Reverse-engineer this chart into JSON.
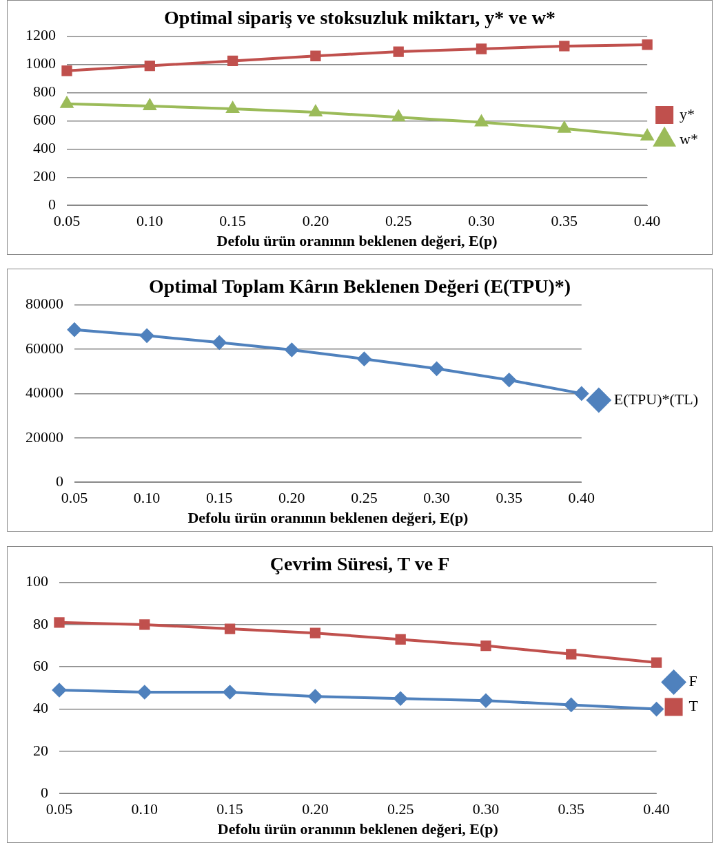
{
  "chart_data": [
    {
      "type": "line",
      "title": "Optimal sipariş ve stoksuzluk miktarı, y* ve w*",
      "xlabel": "Defolu ürün oranının beklenen değeri, E(p)",
      "categories": [
        "0.05",
        "0.10",
        "0.15",
        "0.20",
        "0.25",
        "0.30",
        "0.35",
        "0.40"
      ],
      "series": [
        {
          "name": "y*",
          "color": "#c0504d",
          "marker": "square",
          "values": [
            955,
            990,
            1025,
            1060,
            1090,
            1110,
            1130,
            1140
          ]
        },
        {
          "name": "w*",
          "color": "#9bbb59",
          "marker": "triangle",
          "values": [
            720,
            705,
            685,
            660,
            625,
            590,
            545,
            490
          ]
        }
      ],
      "ylim": [
        0,
        1200
      ],
      "yticks": [
        0,
        200,
        400,
        600,
        800,
        1000,
        1200
      ],
      "grid": "y",
      "legend": "right"
    },
    {
      "type": "line",
      "title": "Optimal Toplam Kârın Beklenen Değeri (E(TPU)*)",
      "xlabel": "Defolu ürün oranının beklenen değeri, E(p)",
      "categories": [
        "0.05",
        "0.10",
        "0.15",
        "0.20",
        "0.25",
        "0.30",
        "0.35",
        "0.40"
      ],
      "series": [
        {
          "name": "E(TPU)*(TL)",
          "color": "#4f81bd",
          "marker": "diamond",
          "values": [
            68800,
            66100,
            63000,
            59700,
            55600,
            51200,
            46100,
            40000
          ]
        }
      ],
      "ylim": [
        0,
        80000
      ],
      "yticks": [
        0,
        20000,
        40000,
        60000,
        80000
      ],
      "grid": "y",
      "legend": "right"
    },
    {
      "type": "line",
      "title": "Çevrim Süresi, T ve F",
      "xlabel": "Defolu ürün oranının beklenen değeri, E(p)",
      "categories": [
        "0.05",
        "0.10",
        "0.15",
        "0.20",
        "0.25",
        "0.30",
        "0.35",
        "0.40"
      ],
      "series": [
        {
          "name": "F",
          "color": "#4f81bd",
          "marker": "diamond",
          "values": [
            49,
            48,
            48,
            46,
            45,
            44,
            42,
            40
          ]
        },
        {
          "name": "T",
          "color": "#c0504d",
          "marker": "square",
          "values": [
            81,
            80,
            78,
            76,
            73,
            70,
            66,
            62
          ]
        }
      ],
      "ylim": [
        0,
        100
      ],
      "yticks": [
        0,
        20,
        40,
        60,
        80,
        100
      ],
      "grid": "y",
      "legend": "right"
    }
  ]
}
